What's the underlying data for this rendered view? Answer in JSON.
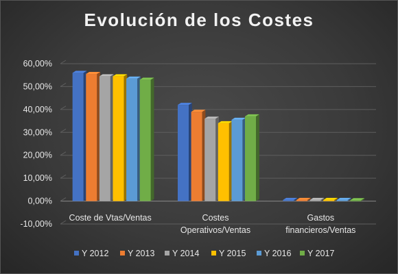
{
  "chart_data": {
    "type": "bar",
    "title": "Evolución de los Costes",
    "xlabel": "",
    "ylabel": "",
    "ylim": [
      -0.1,
      0.6
    ],
    "y_tick_labels": [
      "60,00%",
      "50,00%",
      "40,00%",
      "30,00%",
      "20,00%",
      "10,00%",
      "0,00%",
      "-10,00%"
    ],
    "y_ticks": [
      0.6,
      0.5,
      0.4,
      0.3,
      0.2,
      0.1,
      0.0,
      -0.1
    ],
    "categories": [
      [
        "Coste de Vtas/Ventas"
      ],
      [
        "Costes",
        "Operativos/Ventas"
      ],
      [
        "Gastos",
        "financieros/Ventas"
      ]
    ],
    "series": [
      {
        "name": "Y 2012",
        "color": "#4472c4",
        "values": [
          0.56,
          0.42,
          0.005
        ]
      },
      {
        "name": "Y 2013",
        "color": "#ed7d31",
        "values": [
          0.555,
          0.39,
          0.005
        ]
      },
      {
        "name": "Y 2014",
        "color": "#a5a5a5",
        "values": [
          0.545,
          0.36,
          0.005
        ]
      },
      {
        "name": "Y 2015",
        "color": "#ffc000",
        "values": [
          0.545,
          0.34,
          0.005
        ]
      },
      {
        "name": "Y 2016",
        "color": "#5b9bd5",
        "values": [
          0.535,
          0.355,
          0.005
        ]
      },
      {
        "name": "Y 2017",
        "color": "#70ad47",
        "values": [
          0.53,
          0.37,
          0.004
        ]
      }
    ],
    "grid": true,
    "legend_position": "bottom",
    "style": "3d-clustered-columns"
  }
}
